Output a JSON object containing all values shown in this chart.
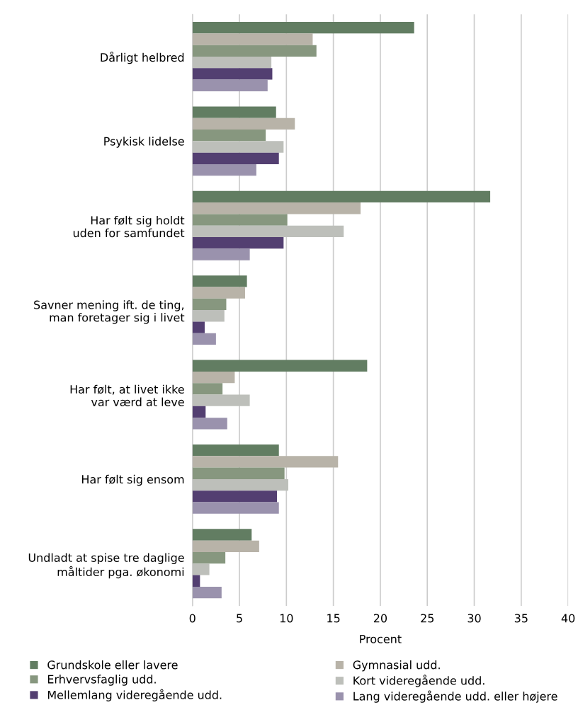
{
  "chart_data": {
    "type": "bar",
    "orientation": "horizontal",
    "xlabel": "Procent",
    "categories": [
      "Dårligt helbred",
      "Psykisk lidelse",
      "Har følt sig holdt\nuden for samfundet",
      "Savner mening ift. de ting,\nman foretager sig i livet",
      "Har følt, at livet ikke\nvar værd at leve",
      "Har følt sig ensom",
      "Undladt at spise tre daglige\nmåltider pga. økonomi"
    ],
    "series": [
      {
        "name": "Grundskole eller lavere",
        "color": "#627d62",
        "values": [
          23.6,
          8.9,
          31.7,
          5.8,
          18.6,
          9.2,
          6.3
        ]
      },
      {
        "name": "Gymnasial udd.",
        "color": "#b8b3a8",
        "values": [
          12.8,
          10.9,
          17.9,
          5.6,
          4.5,
          15.5,
          7.1
        ]
      },
      {
        "name": "Erhvervsfaglig udd.",
        "color": "#87977f",
        "values": [
          13.2,
          7.8,
          10.1,
          3.6,
          3.2,
          9.8,
          3.5
        ]
      },
      {
        "name": "Kort videregående udd.",
        "color": "#bdbfba",
        "values": [
          8.4,
          9.7,
          16.1,
          3.4,
          6.1,
          10.2,
          1.8
        ]
      },
      {
        "name": "Mellemlang videregående udd.",
        "color": "#533f71",
        "values": [
          8.5,
          9.2,
          9.7,
          1.3,
          1.4,
          9.0,
          0.8
        ]
      },
      {
        "name": "Lang videregående udd. eller højere",
        "color": "#9a92ad",
        "values": [
          8.0,
          6.8,
          6.1,
          2.5,
          3.7,
          9.2,
          3.1
        ]
      }
    ],
    "xlim": [
      0,
      40
    ],
    "xticks": [
      0,
      5,
      10,
      15,
      20,
      25,
      30,
      35,
      40
    ],
    "grid": "x",
    "legend": "bottom"
  }
}
